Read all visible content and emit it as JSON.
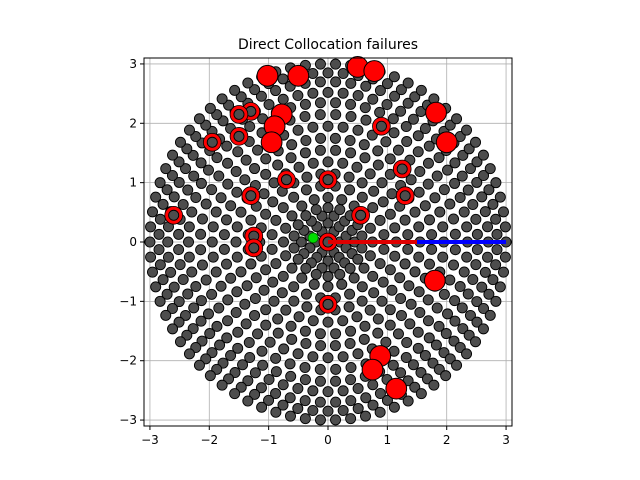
{
  "chart_data": {
    "type": "scatter",
    "title": "Direct Collocation failures",
    "xlabel": "",
    "ylabel": "",
    "xlim": [
      -3.1,
      3.1
    ],
    "ylim": [
      -3.1,
      3.1
    ],
    "aspect": "equal",
    "grid": true,
    "x_ticks": [
      -3,
      -2,
      -1,
      0,
      1,
      2,
      3
    ],
    "y_ticks": [
      -3,
      -2,
      -1,
      0,
      1,
      2,
      3
    ],
    "x_tick_labels": [
      "−3",
      "−2",
      "−1",
      "0",
      "1",
      "2",
      "3"
    ],
    "y_tick_labels": [
      "−3",
      "−2",
      "−1",
      "0",
      "1",
      "2",
      "3"
    ],
    "colors": {
      "sample_fill": "#4d4d4d",
      "sample_edge": "#000000",
      "failure": "#ff0000",
      "red_path": "#e00000",
      "blue_path": "#0000ff",
      "start": "#00dd00",
      "grid": "#b0b0b0"
    },
    "rings": [
      {
        "r": 0.2,
        "n": 6
      },
      {
        "r": 0.32,
        "n": 10
      },
      {
        "r": 0.45,
        "n": 14
      },
      {
        "r": 0.58,
        "n": 18
      },
      {
        "r": 0.75,
        "n": 20
      },
      {
        "r": 0.95,
        "n": 24
      },
      {
        "r": 1.15,
        "n": 30
      },
      {
        "r": 1.35,
        "n": 34
      },
      {
        "r": 1.55,
        "n": 38
      },
      {
        "r": 1.75,
        "n": 44
      },
      {
        "r": 1.95,
        "n": 48
      },
      {
        "r": 2.15,
        "n": 52
      },
      {
        "r": 2.35,
        "n": 58
      },
      {
        "r": 2.52,
        "n": 62
      },
      {
        "r": 2.7,
        "n": 66
      },
      {
        "r": 2.85,
        "n": 70
      },
      {
        "r": 3.0,
        "n": 74
      }
    ],
    "failures_large": [
      [
        0.5,
        2.95
      ],
      [
        0.78,
        2.88
      ],
      [
        -1.02,
        2.8
      ],
      [
        -0.5,
        2.8
      ],
      [
        1.82,
        2.18
      ],
      [
        -0.78,
        2.15
      ],
      [
        -0.9,
        1.95
      ],
      [
        2.0,
        1.68
      ],
      [
        -0.95,
        1.68
      ],
      [
        1.8,
        -0.65
      ],
      [
        0.88,
        -1.92
      ],
      [
        0.75,
        -2.15
      ],
      [
        1.15,
        -2.47
      ]
    ],
    "failures_small": [
      [
        0.9,
        1.95
      ],
      [
        -1.3,
        2.2
      ],
      [
        -1.5,
        2.15
      ],
      [
        -1.5,
        1.78
      ],
      [
        -1.95,
        1.68
      ],
      [
        1.25,
        1.23
      ],
      [
        -0.7,
        1.05
      ],
      [
        0.0,
        1.05
      ],
      [
        1.3,
        0.78
      ],
      [
        -1.3,
        0.78
      ],
      [
        -2.6,
        0.45
      ],
      [
        -1.25,
        0.1
      ],
      [
        -1.25,
        -0.1
      ],
      [
        0.0,
        -1.05
      ],
      [
        0.0,
        0.0
      ],
      [
        0.55,
        0.45
      ]
    ],
    "red_path": {
      "x": [
        0.0,
        1.5
      ],
      "y": [
        0.0,
        0.0
      ]
    },
    "blue_path": {
      "x": [
        1.5,
        3.0
      ],
      "y": [
        0.0,
        0.0
      ]
    },
    "start_point": [
      -0.25,
      0.07
    ]
  }
}
